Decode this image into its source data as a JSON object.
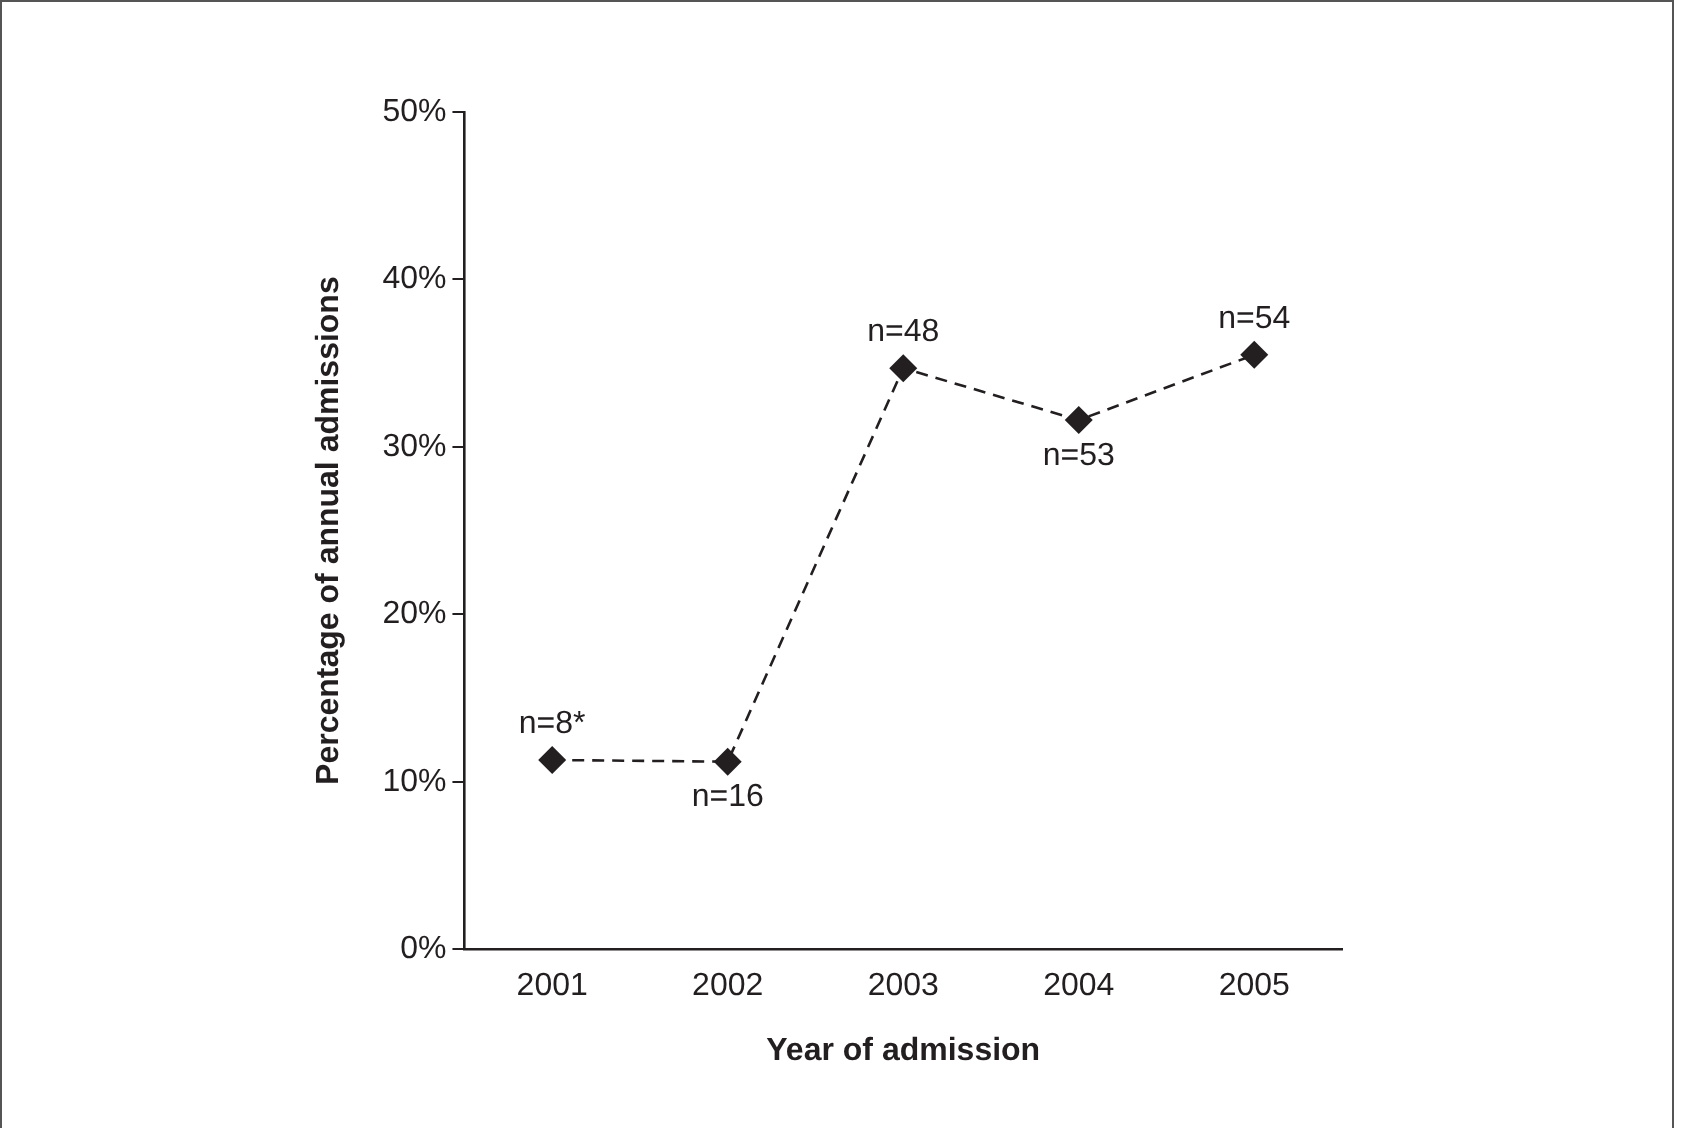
{
  "chart_data": {
    "type": "line",
    "xlabel": "Year of admission",
    "ylabel": "Percentage of annual admissions",
    "categories": [
      "2001",
      "2002",
      "2003",
      "2004",
      "2005"
    ],
    "series": [
      {
        "color": "#231f20",
        "values": [
          11.3,
          11.2,
          34.7,
          31.6,
          35.5
        ]
      }
    ],
    "ylim": [
      0,
      50
    ],
    "yticks": [
      {
        "value": 0,
        "label": "0%"
      },
      {
        "value": 10,
        "label": "10%"
      },
      {
        "value": 20,
        "label": "20%"
      },
      {
        "value": 30,
        "label": "30%"
      },
      {
        "value": 40,
        "label": "40%"
      },
      {
        "value": 50,
        "label": "50%"
      }
    ],
    "marker": "diamond",
    "line_style": "dashed",
    "grid": false,
    "legend": false,
    "annotations": [
      {
        "text": "n=8*",
        "x": "2001",
        "y": 11.3
      },
      {
        "text": "n=16",
        "x": "2002",
        "y": 11.2
      },
      {
        "text": "n=48",
        "x": "2003",
        "y": 34.7
      },
      {
        "text": "n=53",
        "x": "2004",
        "y": 31.6
      },
      {
        "text": "n=54",
        "x": "2005",
        "y": 35.5
      }
    ]
  }
}
